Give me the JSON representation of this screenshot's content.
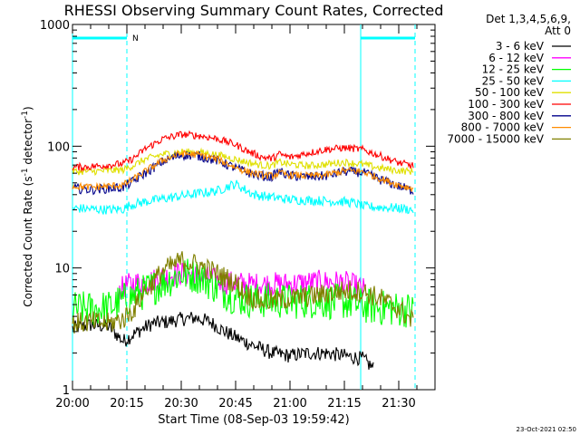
{
  "chart_data": {
    "type": "line",
    "title": "RHESSI Observing Summary Count Rates, Corrected",
    "xlabel": "Start Time (08-Sep-03 19:59:42)",
    "ylabel": "Corrected Count Rate (s-1 detector-1)",
    "ylabel_parts": {
      "pre": "Corrected Count Rate (s",
      "sup1": "-1",
      "mid": " detector",
      "sup2": "-1",
      "post": ")"
    },
    "y_scale": "log",
    "ylim": [
      1,
      1000
    ],
    "xlim": [
      0,
      100
    ],
    "x_unit": "minutes after 20:00",
    "x_ticks": [
      {
        "value": 0,
        "label": "20:00"
      },
      {
        "value": 15,
        "label": "20:15"
      },
      {
        "value": 30,
        "label": "20:30"
      },
      {
        "value": 45,
        "label": "20:45"
      },
      {
        "value": 60,
        "label": "21:00"
      },
      {
        "value": 75,
        "label": "21:15"
      },
      {
        "value": 90,
        "label": "21:30"
      }
    ],
    "y_ticks": [
      {
        "value": 1,
        "label": "1"
      },
      {
        "value": 10,
        "label": "10"
      },
      {
        "value": 100,
        "label": "100"
      },
      {
        "value": 1000,
        "label": "1000"
      }
    ],
    "legend": {
      "placement": "right",
      "header": [
        "Det 1,3,4,5,6,9,",
        "Att 0"
      ]
    },
    "series": [
      {
        "name": "3 - 6 keV",
        "color": "#000000",
        "points": [
          [
            0,
            3.2
          ],
          [
            5,
            3.4
          ],
          [
            10,
            3.3
          ],
          [
            14,
            2.5
          ],
          [
            18,
            3.0
          ],
          [
            22,
            3.5
          ],
          [
            26,
            3.6
          ],
          [
            30,
            3.8
          ],
          [
            34,
            3.9
          ],
          [
            38,
            3.6
          ],
          [
            42,
            3.0
          ],
          [
            46,
            2.6
          ],
          [
            50,
            2.3
          ],
          [
            55,
            2.0
          ],
          [
            60,
            1.9
          ],
          [
            65,
            2.0
          ],
          [
            70,
            2.0
          ],
          [
            75,
            1.9
          ],
          [
            80,
            1.8
          ],
          [
            83,
            1.5
          ]
        ]
      },
      {
        "name": "6 - 12 keV",
        "color": "#ff00ff",
        "points": [
          [
            12.5,
            6.5
          ],
          [
            15,
            7.2
          ],
          [
            18,
            7.6
          ],
          [
            22,
            7.9
          ],
          [
            26,
            8.5
          ],
          [
            30,
            9.1
          ],
          [
            34,
            8.6
          ],
          [
            38,
            8.2
          ],
          [
            42,
            7.6
          ],
          [
            46,
            7.5
          ],
          [
            50,
            7.3
          ],
          [
            55,
            7.4
          ],
          [
            60,
            7.4
          ],
          [
            65,
            7.6
          ],
          [
            70,
            7.7
          ],
          [
            75,
            7.6
          ],
          [
            78,
            7.1
          ],
          [
            81,
            6.5
          ]
        ]
      },
      {
        "name": "12 - 25 keV",
        "color": "#00ff00",
        "points": [
          [
            0,
            4.6
          ],
          [
            5,
            4.6
          ],
          [
            10,
            4.7
          ],
          [
            15,
            5.6
          ],
          [
            20,
            6.4
          ],
          [
            25,
            7.6
          ],
          [
            30,
            8.9
          ],
          [
            35,
            8.6
          ],
          [
            40,
            6.9
          ],
          [
            45,
            5.7
          ],
          [
            50,
            5.4
          ],
          [
            55,
            5.4
          ],
          [
            60,
            5.3
          ],
          [
            65,
            5.4
          ],
          [
            70,
            5.3
          ],
          [
            75,
            5.3
          ],
          [
            80,
            4.9
          ],
          [
            85,
            4.7
          ],
          [
            90,
            4.6
          ],
          [
            94,
            4.5
          ]
        ]
      },
      {
        "name": "25 - 50 keV",
        "color": "#00ffff",
        "points": [
          [
            0,
            31
          ],
          [
            5,
            30.5
          ],
          [
            10,
            30
          ],
          [
            14,
            30.5
          ],
          [
            16,
            33
          ],
          [
            20,
            35
          ],
          [
            25,
            37
          ],
          [
            30,
            39
          ],
          [
            35,
            41
          ],
          [
            40,
            43
          ],
          [
            43,
            47
          ],
          [
            45,
            49
          ],
          [
            47,
            45
          ],
          [
            50,
            40
          ],
          [
            55,
            38
          ],
          [
            60,
            36.5
          ],
          [
            65,
            36
          ],
          [
            70,
            35.5
          ],
          [
            75,
            35
          ],
          [
            78,
            34
          ],
          [
            80,
            32
          ],
          [
            85,
            31.5
          ],
          [
            90,
            31
          ],
          [
            94,
            30
          ]
        ]
      },
      {
        "name": "50 - 100 keV",
        "color": "#e0e000",
        "points": [
          [
            0,
            62
          ],
          [
            5,
            62
          ],
          [
            10,
            63
          ],
          [
            14,
            64
          ],
          [
            17,
            70
          ],
          [
            20,
            78
          ],
          [
            25,
            86
          ],
          [
            30,
            90
          ],
          [
            35,
            89
          ],
          [
            40,
            85
          ],
          [
            45,
            78
          ],
          [
            48,
            74
          ],
          [
            52,
            70
          ],
          [
            55,
            69
          ],
          [
            57,
            74
          ],
          [
            60,
            71
          ],
          [
            65,
            69
          ],
          [
            70,
            71
          ],
          [
            75,
            74
          ],
          [
            80,
            71
          ],
          [
            85,
            66
          ],
          [
            90,
            63
          ],
          [
            94,
            62
          ]
        ]
      },
      {
        "name": "100 - 300 keV",
        "color": "#ff0000",
        "points": [
          [
            0,
            67
          ],
          [
            5,
            68
          ],
          [
            10,
            70
          ],
          [
            14,
            72
          ],
          [
            17,
            80
          ],
          [
            20,
            95
          ],
          [
            25,
            115
          ],
          [
            30,
            125
          ],
          [
            35,
            122
          ],
          [
            40,
            115
          ],
          [
            45,
            103
          ],
          [
            48,
            92
          ],
          [
            52,
            82
          ],
          [
            55,
            79
          ],
          [
            57,
            86
          ],
          [
            60,
            81
          ],
          [
            65,
            88
          ],
          [
            70,
            94
          ],
          [
            75,
            97
          ],
          [
            80,
            94
          ],
          [
            85,
            83
          ],
          [
            90,
            73
          ],
          [
            94,
            69
          ]
        ]
      },
      {
        "name": "300 - 800 keV",
        "color": "#00008b",
        "points": [
          [
            0,
            45
          ],
          [
            5,
            44
          ],
          [
            10,
            45
          ],
          [
            14,
            46
          ],
          [
            17,
            52
          ],
          [
            20,
            60
          ],
          [
            25,
            75
          ],
          [
            30,
            85
          ],
          [
            35,
            83
          ],
          [
            40,
            76
          ],
          [
            45,
            66
          ],
          [
            48,
            61
          ],
          [
            52,
            57
          ],
          [
            55,
            56
          ],
          [
            57,
            62
          ],
          [
            60,
            57
          ],
          [
            65,
            56
          ],
          [
            70,
            57
          ],
          [
            75,
            62
          ],
          [
            80,
            61
          ],
          [
            85,
            53
          ],
          [
            90,
            47
          ],
          [
            94,
            43
          ]
        ]
      },
      {
        "name": "800 - 7000 keV",
        "color": "#ff8c00",
        "points": [
          [
            0,
            47
          ],
          [
            5,
            46
          ],
          [
            10,
            47
          ],
          [
            14,
            48
          ],
          [
            17,
            54
          ],
          [
            20,
            62
          ],
          [
            25,
            77
          ],
          [
            30,
            87
          ],
          [
            35,
            85
          ],
          [
            40,
            78
          ],
          [
            45,
            67
          ],
          [
            48,
            62
          ],
          [
            52,
            58
          ],
          [
            55,
            57
          ],
          [
            57,
            60
          ],
          [
            60,
            58
          ],
          [
            65,
            57
          ],
          [
            70,
            58
          ],
          [
            75,
            63
          ],
          [
            80,
            62
          ],
          [
            85,
            54
          ],
          [
            90,
            48
          ],
          [
            94,
            45
          ]
        ]
      },
      {
        "name": "7000 - 15000 keV",
        "color": "#808000",
        "points": [
          [
            0,
            3.5
          ],
          [
            5,
            3.6
          ],
          [
            10,
            3.5
          ],
          [
            14,
            3.8
          ],
          [
            17,
            4.6
          ],
          [
            20,
            6.5
          ],
          [
            25,
            9.5
          ],
          [
            30,
            11.5
          ],
          [
            35,
            10.5
          ],
          [
            40,
            9.0
          ],
          [
            45,
            7.5
          ],
          [
            48,
            6.0
          ],
          [
            52,
            5.3
          ],
          [
            55,
            5.4
          ],
          [
            60,
            5.6
          ],
          [
            65,
            5.8
          ],
          [
            70,
            6.1
          ],
          [
            75,
            6.5
          ],
          [
            80,
            6.4
          ],
          [
            85,
            5.6
          ],
          [
            90,
            4.6
          ],
          [
            94,
            3.6
          ]
        ]
      }
    ],
    "markers": {
      "color": "#00ffff",
      "solid_x": [
        0,
        79.5
      ],
      "dashed_x": [
        15,
        94.5
      ],
      "top_bars": [
        [
          0,
          15
        ],
        [
          79.5,
          94.5
        ]
      ],
      "top_label": {
        "x": 16.5,
        "text": "N"
      }
    }
  },
  "footer": {
    "date": "23-Oct-2021 02:50"
  }
}
